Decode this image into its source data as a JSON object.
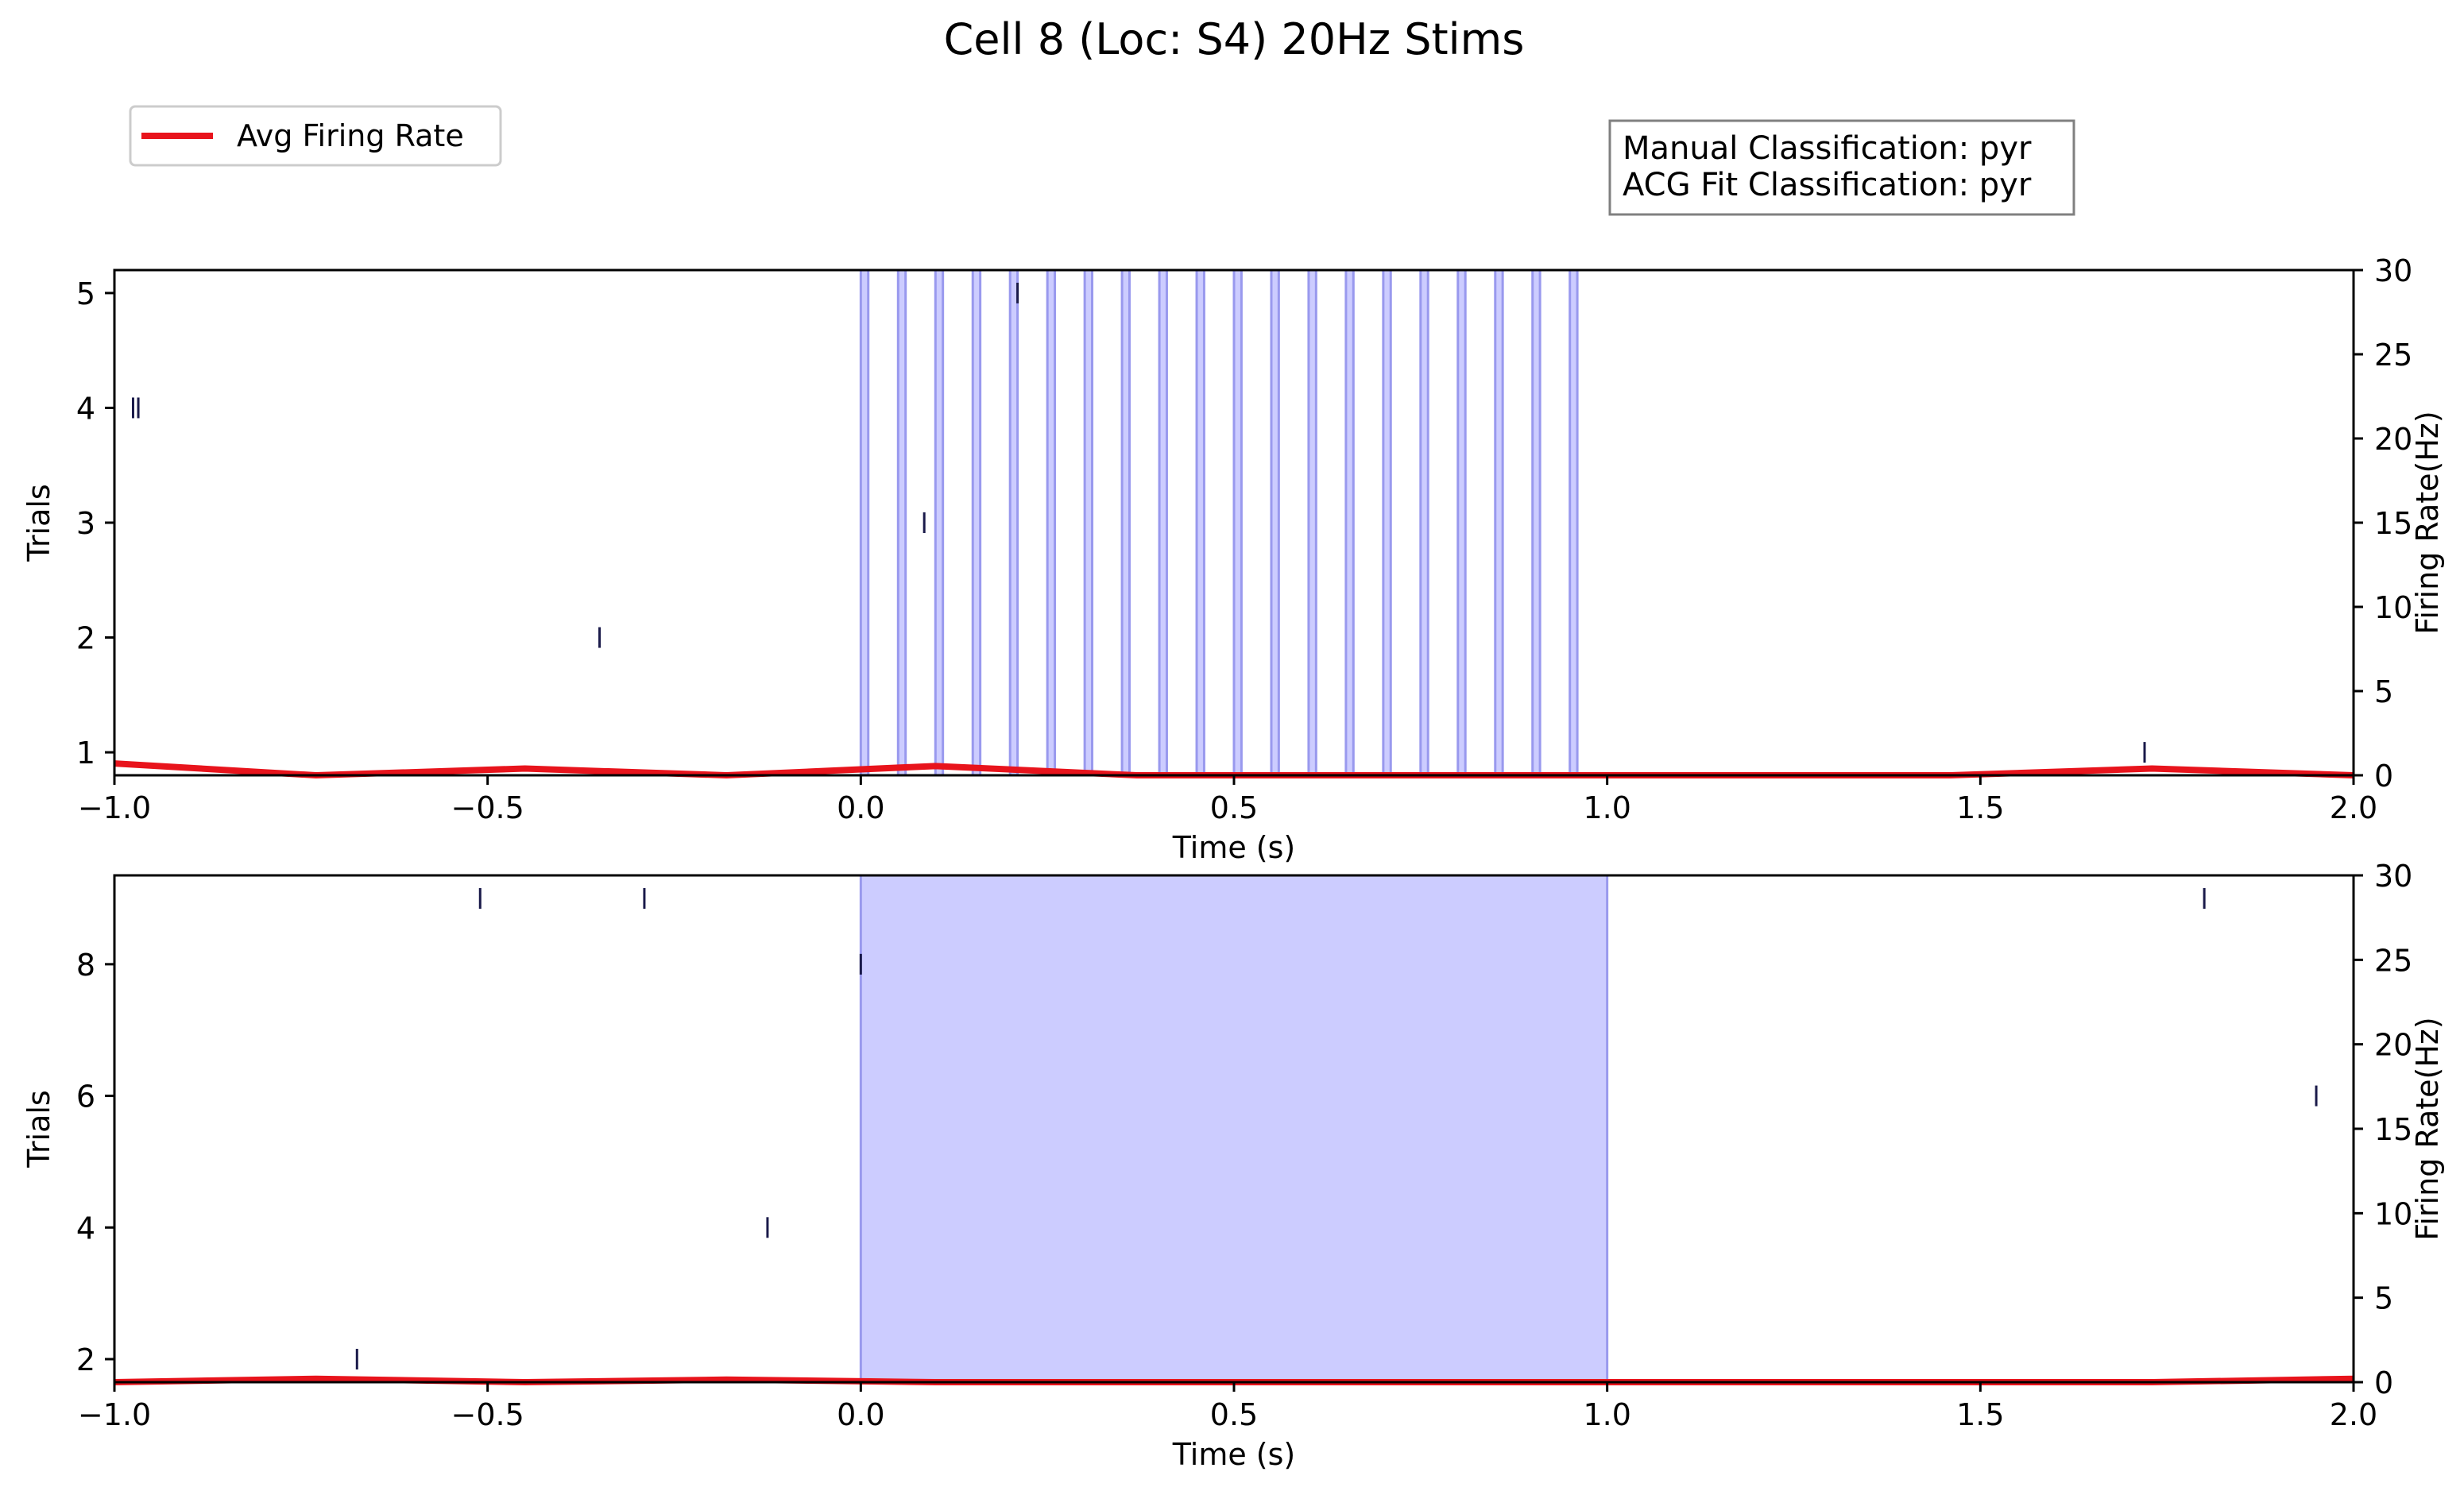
{
  "title": "Cell 8 (Loc: S4) 20Hz Stims",
  "legend": {
    "label": "Avg Firing Rate",
    "color": "#e8141c",
    "position": "top-left"
  },
  "info_box": {
    "manual": "Manual Classification: pyr",
    "acg": "ACG Fit Classification: pyr",
    "position": "top-right"
  },
  "colors": {
    "stim_fill": "#ccccff",
    "stim_edge": "#9999ee",
    "spike": "#1a1a4a",
    "rate": "#e8141c",
    "axis": "#000000"
  },
  "chart_data": [
    {
      "type": "raster",
      "name": "top",
      "xlabel": "Time (s)",
      "ylabel": "Trials",
      "y2label": "Firing Rate(Hz)",
      "xlim": [
        -1.0,
        2.0
      ],
      "ylim": [
        0.8,
        5.2
      ],
      "y2lim": [
        0,
        30
      ],
      "xticks": [
        -1.0,
        -0.5,
        0.0,
        0.5,
        1.0,
        1.5,
        2.0
      ],
      "xticklabels": [
        "−1.0",
        "−0.5",
        "0.0",
        "0.5",
        "1.0",
        "1.5",
        "2.0"
      ],
      "yticks": [
        1,
        2,
        3,
        4,
        5
      ],
      "yticklabels": [
        "1",
        "2",
        "3",
        "4",
        "5"
      ],
      "y2ticks": [
        0,
        5,
        10,
        15,
        20,
        25,
        30
      ],
      "y2ticklabels": [
        "0",
        "5",
        "10",
        "15",
        "20",
        "25",
        "30"
      ],
      "stim_type": "pulses",
      "stim_onsets": [
        0.0,
        0.05,
        0.1,
        0.15,
        0.2,
        0.25,
        0.3,
        0.35,
        0.4,
        0.45,
        0.5,
        0.55,
        0.6,
        0.65,
        0.7,
        0.75,
        0.8,
        0.85,
        0.9,
        0.95
      ],
      "stim_width": 0.01,
      "spikes": [
        {
          "trial": 5,
          "t": 0.21
        },
        {
          "trial": 4,
          "t": -0.975
        },
        {
          "trial": 4,
          "t": -0.968
        },
        {
          "trial": 3,
          "t": 0.085
        },
        {
          "trial": 2,
          "t": -0.35
        },
        {
          "trial": 1,
          "t": 1.72
        }
      ],
      "rate": {
        "x": [
          -1.0,
          -0.73,
          -0.45,
          -0.18,
          0.1,
          0.37,
          0.64,
          0.92,
          1.19,
          1.46,
          1.73,
          2.0
        ],
        "y": [
          0.7,
          0.0,
          0.4,
          0.0,
          0.55,
          0.0,
          0.0,
          0.0,
          0.0,
          0.0,
          0.4,
          0.0
        ]
      }
    },
    {
      "type": "raster",
      "name": "bottom",
      "xlabel": "Time (s)",
      "ylabel": "Trials",
      "y2label": "Firing Rate(Hz)",
      "xlim": [
        -1.0,
        2.0
      ],
      "ylim": [
        1.65,
        9.35
      ],
      "y2lim": [
        0,
        30
      ],
      "xticks": [
        -1.0,
        -0.5,
        0.0,
        0.5,
        1.0,
        1.5,
        2.0
      ],
      "xticklabels": [
        "−1.0",
        "−0.5",
        "0.0",
        "0.5",
        "1.0",
        "1.5",
        "2.0"
      ],
      "yticks": [
        2,
        4,
        6,
        8
      ],
      "yticklabels": [
        "2",
        "4",
        "6",
        "8"
      ],
      "y2ticks": [
        0,
        5,
        10,
        15,
        20,
        25,
        30
      ],
      "y2ticklabels": [
        "0",
        "5",
        "10",
        "15",
        "20",
        "25",
        "30"
      ],
      "stim_type": "block",
      "stim_start": 0.0,
      "stim_end": 1.0,
      "spikes": [
        {
          "trial": 9,
          "t": -0.51
        },
        {
          "trial": 9,
          "t": -0.29
        },
        {
          "trial": 9,
          "t": 1.8
        },
        {
          "trial": 8,
          "t": 0.0
        },
        {
          "trial": 6,
          "t": 1.95
        },
        {
          "trial": 4,
          "t": -0.125
        },
        {
          "trial": 2,
          "t": -0.675
        }
      ],
      "rate": {
        "x": [
          -1.0,
          -0.73,
          -0.45,
          -0.18,
          0.1,
          0.37,
          0.64,
          0.92,
          1.19,
          1.46,
          1.73,
          2.0
        ],
        "y": [
          0.0,
          0.2,
          0.0,
          0.15,
          0.0,
          0.0,
          0.0,
          0.0,
          0.0,
          0.0,
          0.0,
          0.2
        ]
      }
    }
  ]
}
